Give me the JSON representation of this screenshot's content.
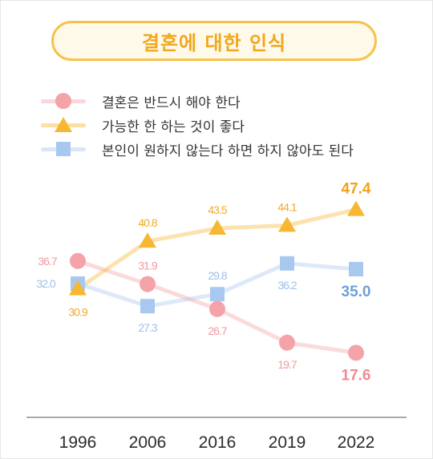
{
  "title": "결혼에 대한 인식",
  "chart_data": {
    "type": "line",
    "title": "결혼에 대한 인식",
    "categories": [
      "1996",
      "2006",
      "2016",
      "2019",
      "2022"
    ],
    "ylim": [
      15,
      50
    ],
    "grid": false,
    "legend_position": "top",
    "series": [
      {
        "name": "결혼은 반드시 해야 한다",
        "marker": "circle",
        "color": "#f4a3a8",
        "values": [
          36.7,
          31.9,
          26.7,
          19.7,
          17.6
        ],
        "labels": [
          "36.7",
          "31.9",
          "26.7",
          "19.7",
          "17.6"
        ]
      },
      {
        "name": "가능한 한 하는 것이 좋다",
        "marker": "triangle",
        "color": "#f7b733",
        "values": [
          30.9,
          40.8,
          43.5,
          44.1,
          47.4
        ],
        "labels": [
          "30.9",
          "40.8",
          "43.5",
          "44.1",
          "47.4"
        ]
      },
      {
        "name": "본인이 원하지 않는다 하면 하지 않아도 된다",
        "marker": "square",
        "color": "#a9c8f0",
        "values": [
          32.0,
          27.3,
          29.8,
          36.2,
          35.0
        ],
        "labels": [
          "32.0",
          "27.3",
          "29.8",
          "36.2",
          "35.0"
        ]
      }
    ]
  },
  "colors": {
    "label_pink": "#f09aa0",
    "label_orange": "#f2a92c",
    "label_blue": "#9fbfe6",
    "label_blue_last": "#6f9fd8",
    "axis": "#555555"
  }
}
